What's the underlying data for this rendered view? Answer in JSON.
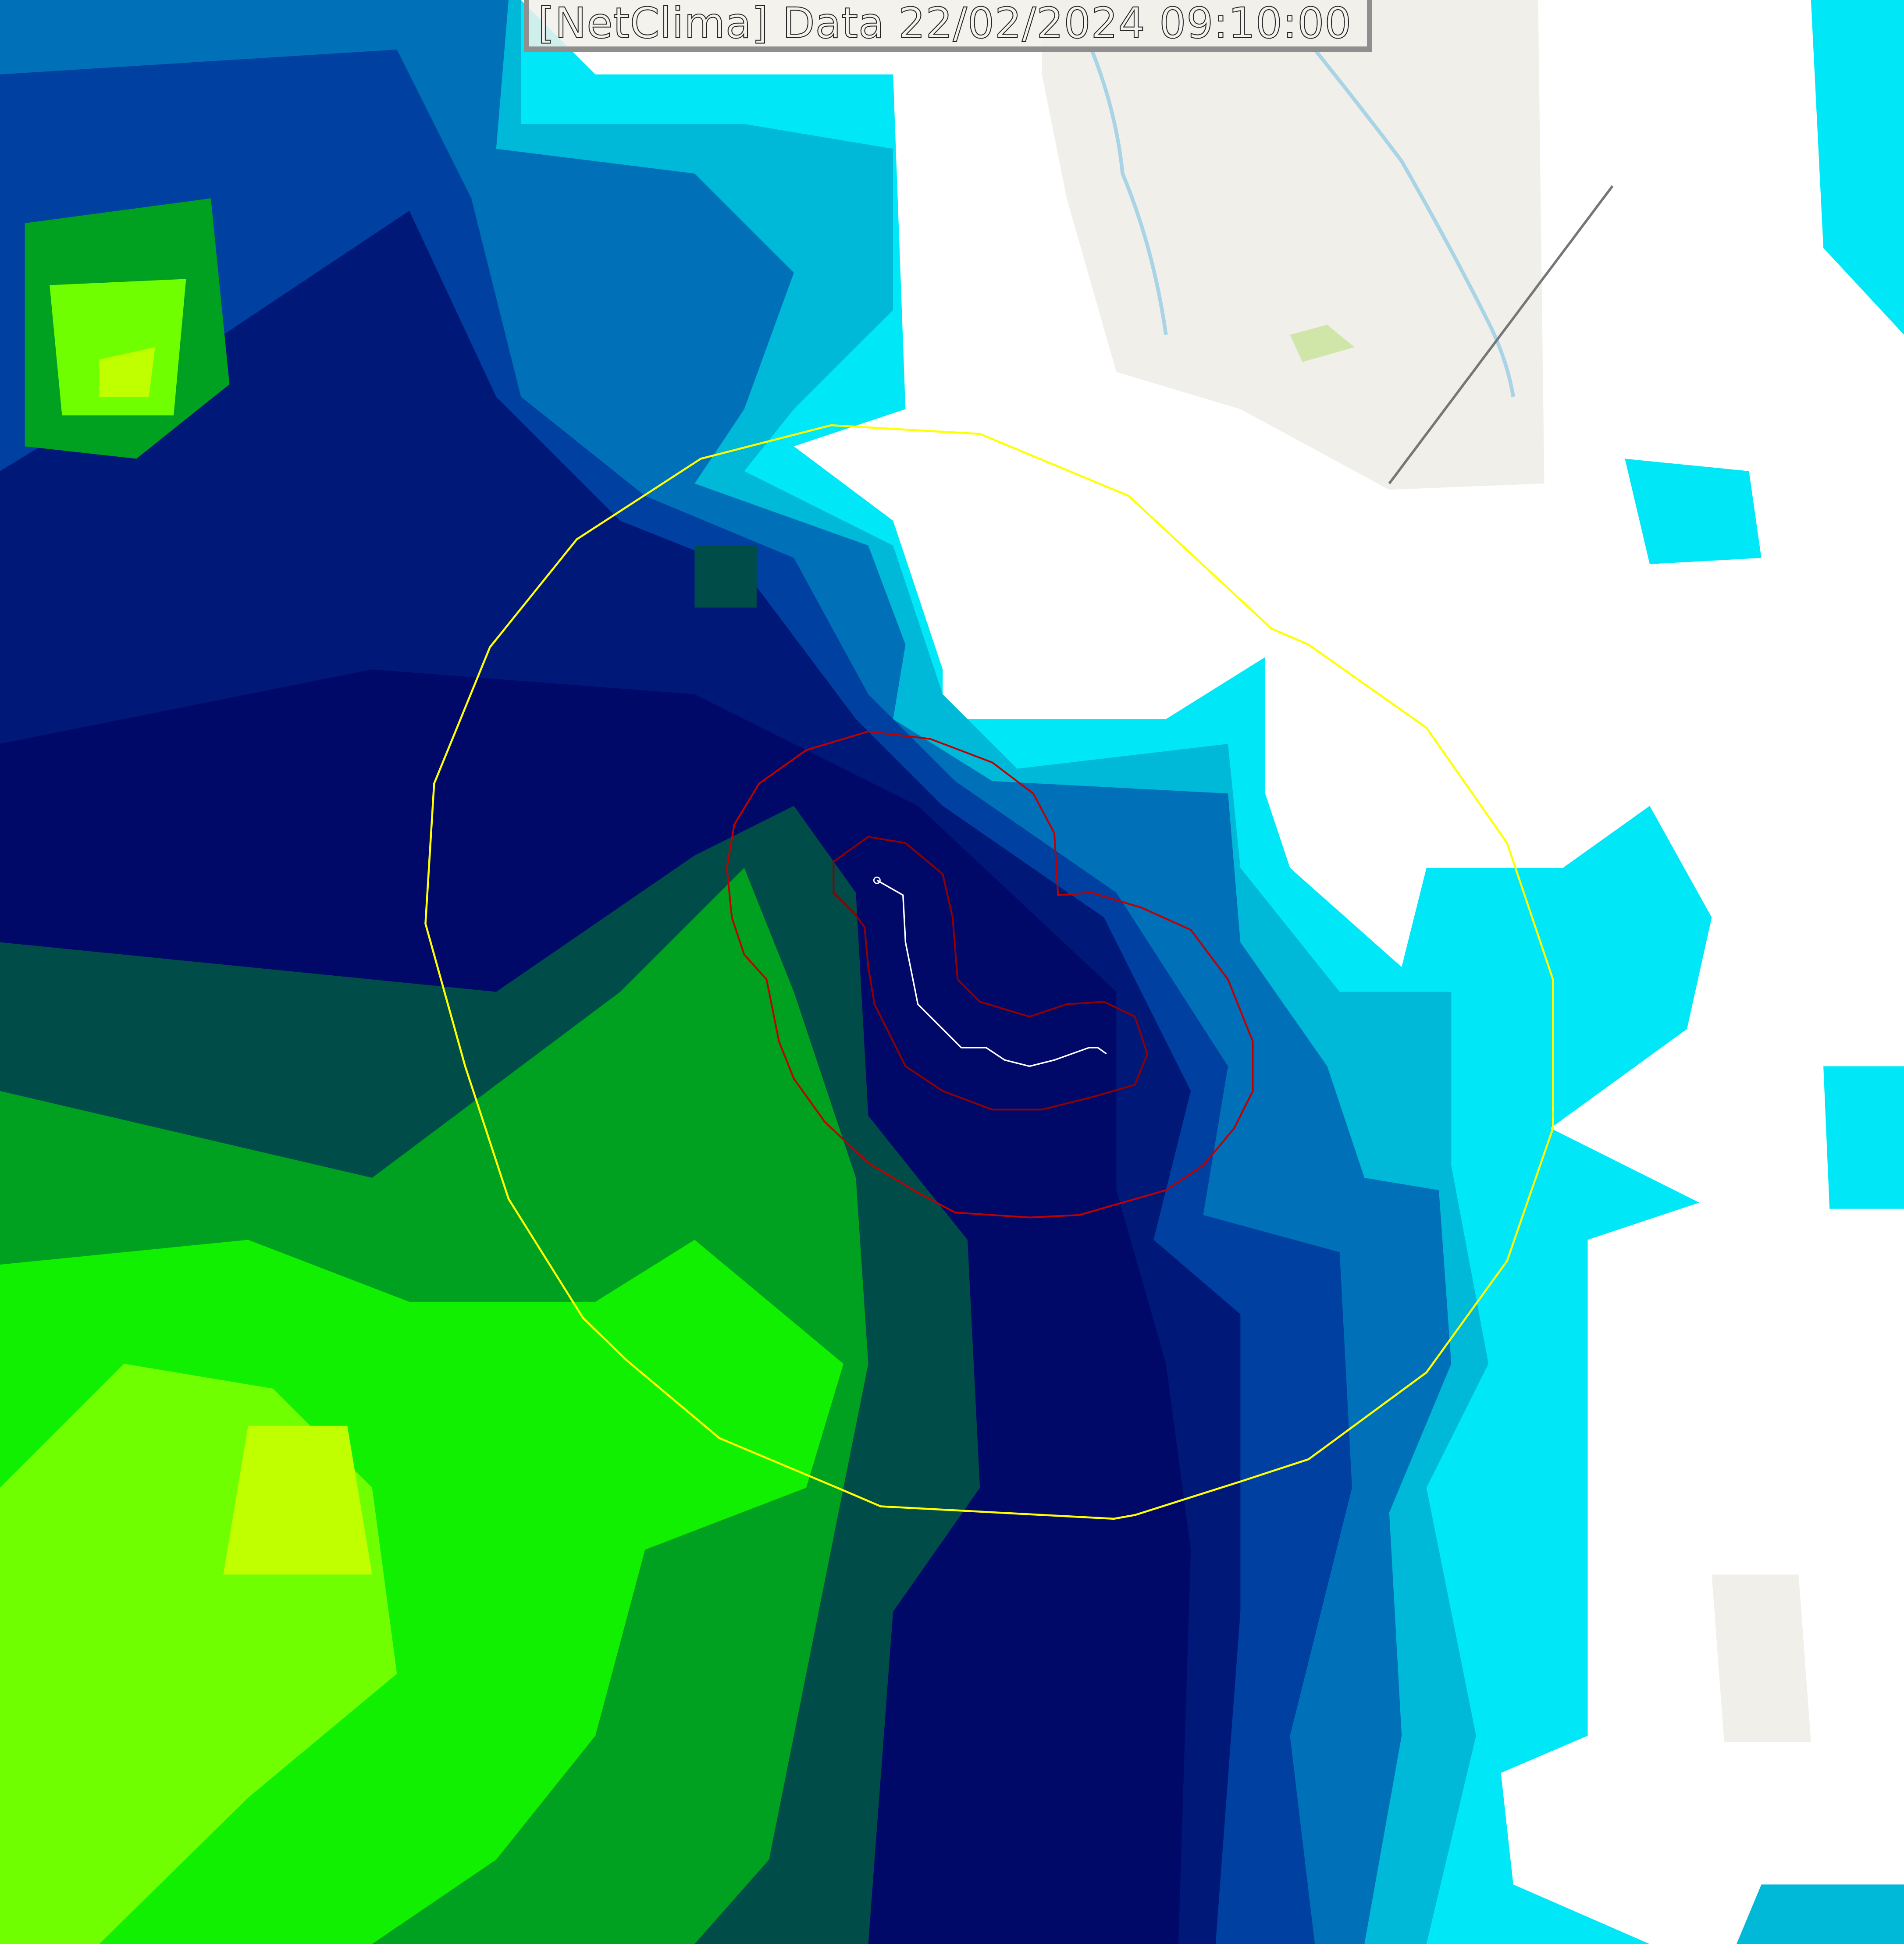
{
  "title": "[NetClima] Data 22/02/2024 09:10:00",
  "colors": {
    "no_data": "#ffffff",
    "basemap": "#f1efe9",
    "river": "#a8d4e6",
    "cyan": "#00e8f8",
    "light_blue": "#00b8d8",
    "medium_blue": "#0070b8",
    "blue": "#0040a0",
    "navy": "#001878",
    "dark_navy": "#000868",
    "dark_green": "#004c48",
    "green": "#00a020",
    "bright_green": "#10f000",
    "lime": "#70ff00",
    "yellow_lime": "#c0ff00",
    "outer_contour": "#ffff00",
    "inner_contours": "#c00000",
    "track": "#ffffff"
  }
}
